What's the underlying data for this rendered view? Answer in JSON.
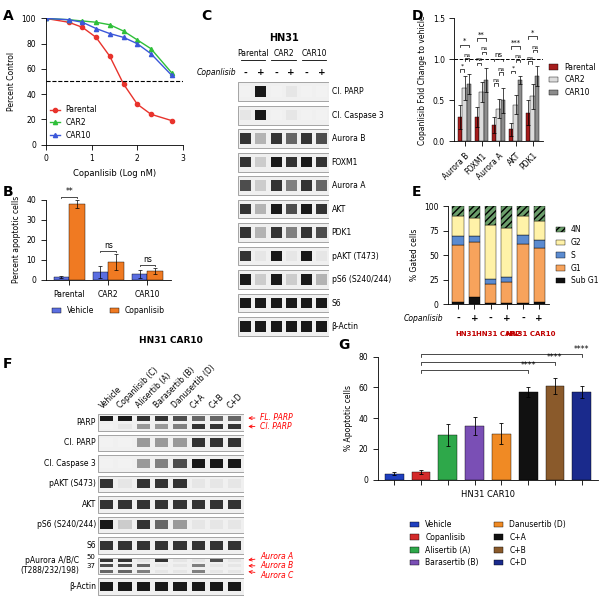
{
  "chart_data": [
    {
      "panel": "A",
      "type": "line",
      "x": [
        0,
        0.5,
        0.8,
        1.1,
        1.4,
        1.7,
        2.0,
        2.3,
        2.75
      ],
      "series": [
        {
          "name": "Parental",
          "color": "#e8332c",
          "marker": "circle",
          "values": [
            100,
            97,
            93,
            85,
            70,
            48,
            32,
            24,
            19
          ]
        },
        {
          "name": "CAR2",
          "color": "#2fbf3a",
          "marker": "triangle",
          "values": [
            100,
            99,
            98,
            97,
            95,
            90,
            83,
            76,
            57
          ]
        },
        {
          "name": "CAR10",
          "color": "#3b57d9",
          "marker": "triangle",
          "values": [
            100,
            99,
            97,
            92,
            88,
            85,
            80,
            72,
            55
          ]
        }
      ],
      "x_label": "Copanlisib (Log nM)",
      "y_label": "Percent Control",
      "xlim": [
        0,
        3
      ],
      "xticks": [
        0,
        1,
        2,
        3
      ],
      "ylim": [
        0,
        100
      ],
      "yticks": [
        0,
        20,
        40,
        60,
        80,
        100
      ],
      "hline": 50,
      "legend": "lower left"
    },
    {
      "panel": "B",
      "type": "bar",
      "categories": [
        "Parental",
        "CAR2",
        "CAR10"
      ],
      "series": [
        {
          "name": "Vehicle",
          "color": "#5b6ee1",
          "values": [
            1.5,
            4,
            3
          ],
          "errors": [
            0.5,
            3,
            2
          ]
        },
        {
          "name": "Copanlisib",
          "color": "#f07a22",
          "values": [
            38,
            9,
            4.5
          ],
          "errors": [
            2,
            4,
            1.5
          ]
        }
      ],
      "y_label": "Percent apoptotic cells",
      "ylim": [
        0,
        40
      ],
      "yticks": [
        0,
        10,
        20,
        30,
        40
      ],
      "significance": [
        "**",
        "ns",
        "ns"
      ],
      "legend": "lower center"
    },
    {
      "panel": "D",
      "type": "bar",
      "categories": [
        "Aurora B",
        "FOXM1",
        "Aurora A",
        "AKT",
        "PDK1"
      ],
      "series": [
        {
          "name": "Parental",
          "color": "#a51d1d",
          "values": [
            0.3,
            0.3,
            0.2,
            0.15,
            0.35
          ],
          "errors": [
            0.15,
            0.12,
            0.1,
            0.08,
            0.15
          ]
        },
        {
          "name": "CAR2",
          "color": "#dcdcdc",
          "values": [
            0.65,
            0.6,
            0.4,
            0.45,
            0.55
          ],
          "errors": [
            0.15,
            0.12,
            0.12,
            0.12,
            0.15
          ]
        },
        {
          "name": "CAR10",
          "color": "#8c8c8c",
          "values": [
            0.7,
            0.75,
            0.5,
            0.75,
            0.8
          ],
          "errors": [
            0.12,
            0.15,
            0.15,
            0.05,
            0.12
          ]
        }
      ],
      "y_label": "Copanlisib Fold Change to vehicle",
      "ylim": [
        0,
        1.5
      ],
      "yticks": [
        {
          "value": 0,
          "label": "0.0"
        },
        0.5,
        {
          "value": 1,
          "label": "1.0"
        },
        1.5
      ],
      "hline": 1,
      "significance": [
        [
          "*",
          "*",
          "ns"
        ],
        [
          "**",
          "ns",
          "ns"
        ],
        [
          "ns",
          "ns",
          "ns"
        ],
        [
          "***",
          "*",
          "ns"
        ],
        [
          "*",
          "ns",
          "ns"
        ]
      ],
      "legend": "center left"
    },
    {
      "panel": "E",
      "type": "bar",
      "stacked": true,
      "categories": [
        "-",
        "+",
        "-",
        "+",
        "-",
        "+"
      ],
      "group_labels": [
        "HN31",
        "HN31 CAR2",
        "HN31 CAR10"
      ],
      "row_label": "Copanlisib",
      "series": [
        {
          "name": "Sub G1",
          "color": "#111111",
          "values": [
            2,
            8,
            1,
            1,
            1,
            2
          ]
        },
        {
          "name": "G1",
          "color": "#f7a35c",
          "values": [
            58,
            55,
            20,
            22,
            60,
            55
          ]
        },
        {
          "name": "S",
          "color": "#5b8bd0",
          "values": [
            10,
            7,
            5,
            5,
            10,
            8
          ]
        },
        {
          "name": "G2",
          "color": "#fff2a8",
          "values": [
            20,
            18,
            55,
            50,
            19,
            20
          ]
        },
        {
          "name": "4N",
          "color": "#6b9e6b",
          "values": [
            10,
            12,
            19,
            22,
            10,
            15
          ]
        }
      ],
      "y_label": "% Gated cells",
      "ylim": [
        0,
        100
      ],
      "yticks": [
        0,
        25,
        50,
        75,
        100
      ],
      "legend": "center left"
    },
    {
      "panel": "G",
      "type": "bar",
      "categories": [
        "Vehicle",
        "Copanlisib",
        "Alisertib (A)",
        "Barasertib (B)",
        "Danusertib (D)",
        "C+A",
        "C+B",
        "C+D"
      ],
      "values": [
        4,
        5,
        29,
        35,
        30,
        57,
        61,
        57
      ],
      "errors": [
        1,
        1,
        7,
        6,
        7,
        3,
        5,
        4
      ],
      "colors": [
        "#1f3fbf",
        "#d42a2a",
        "#2ea84a",
        "#7a4fb5",
        "#f08a24",
        "#111111",
        "#8a5a2b",
        "#1a2a8c"
      ],
      "x_label": "HN31 CAR10",
      "y_label": "% Apoptotic cells",
      "ylim": [
        0,
        80
      ],
      "yticks": [
        0,
        20,
        40,
        60,
        80
      ],
      "tick_labels": "y",
      "significance": [
        {
          "from": 1,
          "to": 5,
          "label": "****"
        },
        {
          "from": 1,
          "to": 6,
          "label": "****"
        },
        {
          "from": 1,
          "to": 7,
          "label": "****"
        }
      ],
      "legend": "lower center"
    }
  ],
  "blots": [
    {
      "panel": "C",
      "title": "HN31",
      "treatment": "Copanlisib",
      "groups": [
        "Parental",
        "CAR2",
        "CAR10"
      ],
      "lanes": [
        "-",
        "+",
        "-",
        "+",
        "-",
        "+"
      ],
      "rows": [
        {
          "label": "Cl. PARP",
          "bands": [
            [
              0.05,
              0.9,
              0.05,
              0.1,
              0.05,
              0.05
            ]
          ]
        },
        {
          "label": "Cl. Caspase 3",
          "bands": [
            [
              0.1,
              0.9,
              0.05,
              0.1,
              0.05,
              0.05
            ]
          ]
        },
        {
          "label": "Aurora B",
          "bands": [
            [
              0.8,
              0.3,
              0.8,
              0.6,
              0.8,
              0.7
            ]
          ]
        },
        {
          "label": "FOXM1",
          "bands": [
            [
              0.8,
              0.2,
              0.9,
              0.8,
              0.9,
              0.8
            ]
          ]
        },
        {
          "label": "Aurora A",
          "bands": [
            [
              0.7,
              0.2,
              0.8,
              0.5,
              0.8,
              0.6
            ]
          ]
        },
        {
          "label": "AKT",
          "bands": [
            [
              0.8,
              0.3,
              0.9,
              0.7,
              0.9,
              0.8
            ]
          ]
        },
        {
          "label": "PDK1",
          "bands": [
            [
              0.8,
              0.3,
              0.8,
              0.5,
              0.8,
              0.7
            ]
          ]
        },
        {
          "label": "pAKT (T473)",
          "bands": [
            [
              0.8,
              0.1,
              0.9,
              0.1,
              0.9,
              0.1
            ]
          ]
        },
        {
          "label": "pS6 (S240/244)",
          "bands": [
            [
              0.9,
              0.2,
              0.9,
              0.2,
              0.9,
              0.3
            ]
          ]
        },
        {
          "label": "S6",
          "bands": [
            [
              0.9,
              0.9,
              0.9,
              0.9,
              0.9,
              0.9
            ]
          ]
        },
        {
          "label": "β-Actin",
          "bands": [
            [
              0.9,
              0.9,
              0.9,
              0.9,
              0.9,
              0.9
            ]
          ]
        }
      ]
    },
    {
      "panel": "F",
      "title": "HN31 CAR10",
      "lanes": [
        "Vehicle",
        "Copanlisib (C)",
        "Alisertib (A)",
        "Barasertib (B)",
        "Danusertib (D)",
        "C+A",
        "C+B",
        "C+D"
      ],
      "rows": [
        {
          "label": "PARP",
          "bands": [
            [
              0.9,
              0.9,
              0.8,
              0.8,
              0.7,
              0.6,
              0.6,
              0.6
            ],
            [
              0.05,
              0.1,
              0.4,
              0.4,
              0.5,
              0.8,
              0.8,
              0.8
            ]
          ],
          "band_labels": [
            "FL. PARP",
            "Cl. PARP"
          ]
        },
        {
          "label": "Cl. PARP",
          "bands": [
            [
              0.05,
              0.05,
              0.4,
              0.4,
              0.4,
              0.8,
              0.8,
              0.8
            ]
          ]
        },
        {
          "label": "Cl. Caspase 3",
          "bands": [
            [
              0.05,
              0.05,
              0.4,
              0.5,
              0.7,
              0.9,
              0.9,
              0.9
            ]
          ]
        },
        {
          "label": "pAKT (S473)",
          "bands": [
            [
              0.8,
              0.1,
              0.8,
              0.8,
              0.8,
              0.1,
              0.1,
              0.1
            ]
          ]
        },
        {
          "label": "AKT",
          "bands": [
            [
              0.8,
              0.8,
              0.8,
              0.8,
              0.8,
              0.8,
              0.8,
              0.8
            ]
          ]
        },
        {
          "label": "pS6 (S240/244)",
          "bands": [
            [
              0.9,
              0.2,
              0.8,
              0.6,
              0.4,
              0.1,
              0.1,
              0.1
            ]
          ]
        },
        {
          "label": "S6",
          "bands": [
            [
              0.8,
              0.8,
              0.8,
              0.8,
              0.8,
              0.8,
              0.8,
              0.8
            ]
          ]
        },
        {
          "label": "pAurora A/B/C\n(T288/232/198)",
          "bands": [
            [
              0.8,
              0.8,
              0.1,
              0.8,
              0.1,
              0.1,
              0.7,
              0.1
            ],
            [
              0.7,
              0.7,
              0.6,
              0.1,
              0.1,
              0.5,
              0.1,
              0.1
            ],
            [
              0.6,
              0.6,
              0.5,
              0.1,
              0.1,
              0.5,
              0.1,
              0.1
            ]
          ],
          "band_labels": [
            "Aurora A",
            "Aurora B",
            "Aurora C"
          ],
          "ladder": [
            50,
            37
          ]
        },
        {
          "label": "β-Actin",
          "bands": [
            [
              0.9,
              0.9,
              0.9,
              0.9,
              0.9,
              0.9,
              0.9,
              0.9
            ]
          ]
        }
      ]
    }
  ]
}
